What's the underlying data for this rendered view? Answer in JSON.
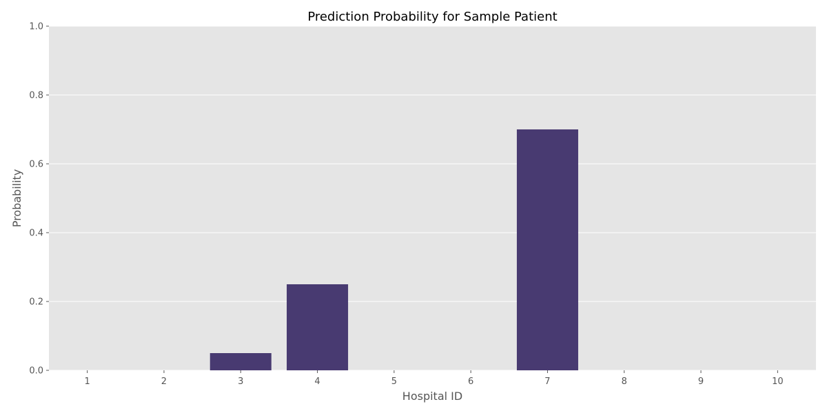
{
  "chart_data": {
    "type": "bar",
    "title": "Prediction Probability for Sample Patient",
    "xlabel": "Hospital ID",
    "ylabel": "Probability",
    "categories": [
      "1",
      "2",
      "3",
      "4",
      "5",
      "6",
      "7",
      "8",
      "9",
      "10"
    ],
    "values": [
      0.0,
      0.0,
      0.05,
      0.25,
      0.0,
      0.0,
      0.7,
      0.0,
      0.0,
      0.0
    ],
    "ylim": [
      0,
      1
    ],
    "yticks": [
      "0.0",
      "0.2",
      "0.4",
      "0.6",
      "0.8",
      "1.0"
    ],
    "grid": "horizontal",
    "colors": {
      "bar": "#483a71",
      "background": "#e5e5e5",
      "grid": "#ffffff",
      "text": "#555555"
    }
  }
}
